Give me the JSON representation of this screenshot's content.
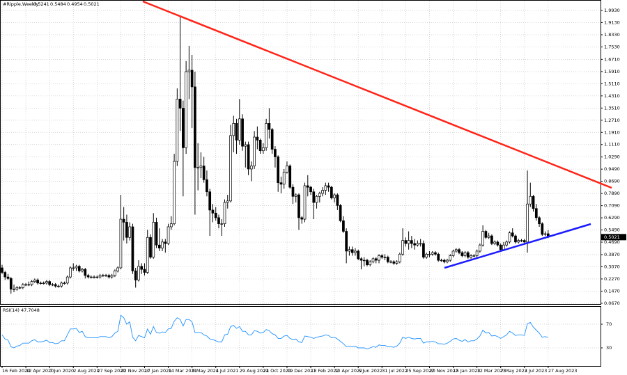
{
  "chart_data": [
    {
      "type": "candlestick",
      "title": "#Ripple,Weekly",
      "color": "#000000",
      "grid": true,
      "categories": [
        "16 Feb 2020",
        null,
        null,
        null,
        null,
        null,
        null,
        null,
        "12 Apr 2020",
        null,
        null,
        null,
        null,
        null,
        null,
        null,
        "7 Jun 2020",
        null,
        null,
        null,
        null,
        null,
        null,
        null,
        "2 Aug 2020",
        null,
        null,
        null,
        null,
        null,
        null,
        null,
        "27 Sep 2020",
        null,
        null,
        null,
        null,
        null,
        null,
        null,
        "22 Nov 2020",
        null,
        null,
        null,
        null,
        null,
        null,
        null,
        "17 Jan 2021",
        null,
        null,
        null,
        null,
        null,
        null,
        null,
        "14 Mar 2021",
        null,
        null,
        null,
        null,
        null,
        null,
        null,
        "9 May 2021",
        null,
        null,
        null,
        null,
        null,
        null,
        null,
        "4 Jul 2021",
        null,
        null,
        null,
        null,
        null,
        null,
        null,
        "29 Aug 2021",
        null,
        null,
        null,
        null,
        null,
        null,
        null,
        "24 Oct 2021",
        null,
        null,
        null,
        null,
        null,
        null,
        null,
        "19 Dec 2021",
        null,
        null,
        null,
        null,
        null,
        null,
        null,
        "13 Feb 2022",
        null,
        null,
        null,
        null,
        null,
        null,
        null,
        "10 Apr 2022",
        null,
        null,
        null,
        null,
        null,
        null,
        null,
        "5 Jun 2022",
        null,
        null,
        null,
        null,
        null,
        null,
        null,
        "31 Jul 2022",
        null,
        null,
        null,
        null,
        null,
        null,
        null,
        "25 Sep 2022",
        null,
        null,
        null,
        null,
        null,
        null,
        null,
        "20 Nov 2022",
        null,
        null,
        null,
        null,
        null,
        null,
        null,
        "15 Jan 2023",
        null,
        null,
        null,
        null,
        null,
        null,
        null,
        "12 Mar 2023",
        null,
        null,
        null,
        null,
        null,
        null,
        null,
        "7 May 2023",
        null,
        null,
        null,
        null,
        null,
        null,
        null,
        "2 Jul 2023",
        null,
        null,
        null,
        null,
        null,
        null,
        null,
        "27 Aug 2023"
      ],
      "open": [
        0.3,
        0.27,
        0.24,
        0.23,
        0.16,
        0.16,
        0.17,
        0.17,
        0.19,
        0.19,
        0.19,
        0.21,
        0.22,
        0.2,
        0.2,
        0.2,
        0.21,
        0.19,
        0.19,
        0.18,
        0.18,
        0.2,
        0.2,
        0.24,
        0.3,
        0.3,
        0.31,
        0.28,
        0.29,
        0.25,
        0.24,
        0.24,
        0.24,
        0.24,
        0.25,
        0.25,
        0.25,
        0.24,
        0.25,
        0.28,
        0.3,
        0.62,
        0.6,
        0.5,
        0.57,
        0.28,
        0.22,
        0.31,
        0.29,
        0.27,
        0.5,
        0.37,
        0.6,
        0.45,
        0.43,
        0.47,
        0.46,
        0.57,
        0.59,
        1.0,
        1.41,
        1.35,
        1.09,
        1.59,
        1.6,
        1.49,
        0.96,
        0.96,
        0.97,
        0.88,
        0.8,
        0.68,
        0.66,
        0.63,
        0.59,
        0.59,
        0.73,
        0.74,
        1.17,
        1.25,
        1.14,
        1.28,
        1.1,
        1.11,
        0.95,
        0.97,
        1.16,
        1.14,
        1.07,
        1.09,
        1.25,
        1.21,
        1.08,
        1.03,
        0.86,
        0.85,
        0.93,
        0.97,
        0.83,
        0.77,
        0.78,
        0.63,
        0.62,
        0.84,
        0.83,
        0.8,
        0.73,
        0.77,
        0.79,
        0.81,
        0.84,
        0.83,
        0.76,
        0.78,
        0.71,
        0.61,
        0.54,
        0.41,
        0.42,
        0.4,
        0.41,
        0.36,
        0.35,
        0.35,
        0.32,
        0.34,
        0.36,
        0.35,
        0.38,
        0.37,
        0.37,
        0.34,
        0.34,
        0.33,
        0.34,
        0.39,
        0.48,
        0.46,
        0.48,
        0.46,
        0.45,
        0.46,
        0.46,
        0.37,
        0.39,
        0.39,
        0.4,
        0.39,
        0.35,
        0.35,
        0.34,
        0.35,
        0.38,
        0.41,
        0.42,
        0.4,
        0.38,
        0.4,
        0.37,
        0.38,
        0.38,
        0.41,
        0.45,
        0.54,
        0.5,
        0.51,
        0.46,
        0.47,
        0.45,
        0.42,
        0.45,
        0.47,
        0.53,
        0.51,
        0.47,
        0.48,
        0.48,
        0.47,
        0.72,
        0.77,
        0.69,
        0.63,
        0.59,
        0.52,
        0.5241
      ],
      "high": [
        0.32,
        0.28,
        0.26,
        0.24,
        0.19,
        0.18,
        0.18,
        0.2,
        0.2,
        0.21,
        0.22,
        0.23,
        0.23,
        0.21,
        0.21,
        0.22,
        0.22,
        0.2,
        0.2,
        0.19,
        0.21,
        0.21,
        0.25,
        0.31,
        0.33,
        0.32,
        0.32,
        0.3,
        0.3,
        0.26,
        0.25,
        0.25,
        0.25,
        0.26,
        0.26,
        0.26,
        0.26,
        0.26,
        0.29,
        0.31,
        0.78,
        0.7,
        0.65,
        0.6,
        0.59,
        0.3,
        0.35,
        0.33,
        0.33,
        0.55,
        0.52,
        0.66,
        0.63,
        0.56,
        0.49,
        0.49,
        0.59,
        0.64,
        1.05,
        1.48,
        1.96,
        1.4,
        1.66,
        1.76,
        1.7,
        1.59,
        1.12,
        1.06,
        1.03,
        0.94,
        0.82,
        0.72,
        0.7,
        0.65,
        0.62,
        0.75,
        0.78,
        1.24,
        1.3,
        1.28,
        1.41,
        1.31,
        1.13,
        1.13,
        1.0,
        1.2,
        1.23,
        1.15,
        1.12,
        1.28,
        1.35,
        1.22,
        1.1,
        1.04,
        0.9,
        0.95,
        1.0,
        0.98,
        0.85,
        0.79,
        0.79,
        0.64,
        0.86,
        0.91,
        0.84,
        0.82,
        0.78,
        0.8,
        0.83,
        0.86,
        0.86,
        0.84,
        0.79,
        0.79,
        0.72,
        0.64,
        0.56,
        0.44,
        0.44,
        0.43,
        0.42,
        0.37,
        0.37,
        0.36,
        0.35,
        0.37,
        0.37,
        0.39,
        0.39,
        0.39,
        0.38,
        0.35,
        0.35,
        0.35,
        0.4,
        0.56,
        0.5,
        0.54,
        0.51,
        0.49,
        0.48,
        0.49,
        0.48,
        0.4,
        0.41,
        0.41,
        0.41,
        0.4,
        0.36,
        0.36,
        0.36,
        0.39,
        0.42,
        0.43,
        0.43,
        0.41,
        0.41,
        0.41,
        0.39,
        0.39,
        0.42,
        0.46,
        0.58,
        0.55,
        0.53,
        0.52,
        0.48,
        0.48,
        0.46,
        0.47,
        0.48,
        0.54,
        0.56,
        0.52,
        0.49,
        0.49,
        0.49,
        0.94,
        0.86,
        0.78,
        0.72,
        0.64,
        0.6,
        0.54,
        0.5484
      ],
      "low": [
        0.26,
        0.22,
        0.22,
        0.13,
        0.14,
        0.15,
        0.16,
        0.16,
        0.18,
        0.18,
        0.18,
        0.2,
        0.19,
        0.19,
        0.19,
        0.19,
        0.18,
        0.18,
        0.17,
        0.17,
        0.17,
        0.19,
        0.19,
        0.23,
        0.28,
        0.28,
        0.27,
        0.27,
        0.23,
        0.23,
        0.23,
        0.23,
        0.23,
        0.23,
        0.24,
        0.24,
        0.23,
        0.23,
        0.24,
        0.27,
        0.29,
        0.48,
        0.46,
        0.48,
        0.26,
        0.17,
        0.21,
        0.26,
        0.25,
        0.26,
        0.36,
        0.36,
        0.43,
        0.41,
        0.41,
        0.4,
        0.45,
        0.55,
        0.58,
        0.97,
        1.2,
        0.77,
        1.05,
        1.41,
        1.22,
        0.65,
        0.81,
        0.89,
        0.86,
        0.77,
        0.51,
        0.6,
        0.61,
        0.56,
        0.51,
        0.57,
        0.69,
        0.73,
        1.06,
        1.05,
        1.11,
        1.07,
        0.96,
        0.91,
        0.87,
        0.95,
        1.08,
        1.05,
        1.05,
        1.07,
        1.15,
        1.05,
        0.96,
        0.8,
        0.79,
        0.82,
        0.92,
        0.82,
        0.72,
        0.73,
        0.55,
        0.59,
        0.6,
        0.77,
        0.78,
        0.62,
        0.69,
        0.73,
        0.77,
        0.78,
        0.8,
        0.75,
        0.73,
        0.68,
        0.6,
        0.53,
        0.33,
        0.38,
        0.38,
        0.38,
        0.35,
        0.29,
        0.31,
        0.31,
        0.31,
        0.33,
        0.33,
        0.33,
        0.36,
        0.35,
        0.33,
        0.33,
        0.32,
        0.32,
        0.33,
        0.38,
        0.44,
        0.42,
        0.43,
        0.42,
        0.44,
        0.44,
        0.36,
        0.36,
        0.37,
        0.38,
        0.38,
        0.34,
        0.34,
        0.33,
        0.33,
        0.34,
        0.37,
        0.4,
        0.39,
        0.37,
        0.37,
        0.36,
        0.36,
        0.37,
        0.36,
        0.4,
        0.44,
        0.49,
        0.49,
        0.45,
        0.45,
        0.44,
        0.41,
        0.41,
        0.44,
        0.46,
        0.5,
        0.46,
        0.46,
        0.47,
        0.46,
        0.4,
        0.7,
        0.67,
        0.61,
        0.57,
        0.51,
        0.51,
        0.4954
      ],
      "close": [
        0.27,
        0.24,
        0.23,
        0.16,
        0.16,
        0.17,
        0.17,
        0.19,
        0.19,
        0.19,
        0.21,
        0.22,
        0.2,
        0.2,
        0.2,
        0.21,
        0.19,
        0.19,
        0.18,
        0.18,
        0.2,
        0.2,
        0.24,
        0.3,
        0.3,
        0.31,
        0.28,
        0.29,
        0.25,
        0.24,
        0.24,
        0.24,
        0.24,
        0.25,
        0.25,
        0.25,
        0.24,
        0.25,
        0.28,
        0.3,
        0.62,
        0.6,
        0.5,
        0.57,
        0.28,
        0.22,
        0.31,
        0.29,
        0.27,
        0.5,
        0.37,
        0.6,
        0.45,
        0.43,
        0.47,
        0.46,
        0.57,
        0.59,
        1.0,
        1.41,
        1.35,
        1.09,
        1.59,
        1.6,
        1.49,
        0.96,
        0.96,
        0.97,
        0.88,
        0.8,
        0.68,
        0.66,
        0.63,
        0.59,
        0.59,
        0.73,
        0.74,
        1.17,
        1.25,
        1.14,
        1.28,
        1.1,
        1.11,
        0.95,
        0.97,
        1.16,
        1.14,
        1.07,
        1.09,
        1.25,
        1.21,
        1.08,
        1.03,
        0.86,
        0.85,
        0.93,
        0.97,
        0.83,
        0.77,
        0.78,
        0.63,
        0.62,
        0.84,
        0.83,
        0.8,
        0.73,
        0.77,
        0.79,
        0.81,
        0.84,
        0.83,
        0.76,
        0.78,
        0.71,
        0.61,
        0.54,
        0.41,
        0.42,
        0.4,
        0.41,
        0.36,
        0.35,
        0.35,
        0.32,
        0.34,
        0.36,
        0.35,
        0.38,
        0.37,
        0.37,
        0.34,
        0.34,
        0.33,
        0.34,
        0.39,
        0.48,
        0.46,
        0.48,
        0.46,
        0.45,
        0.46,
        0.46,
        0.37,
        0.39,
        0.39,
        0.4,
        0.39,
        0.35,
        0.35,
        0.34,
        0.35,
        0.38,
        0.41,
        0.42,
        0.4,
        0.38,
        0.4,
        0.37,
        0.38,
        0.38,
        0.41,
        0.45,
        0.54,
        0.5,
        0.51,
        0.46,
        0.47,
        0.45,
        0.42,
        0.45,
        0.47,
        0.53,
        0.51,
        0.47,
        0.48,
        0.48,
        0.47,
        0.72,
        0.77,
        0.69,
        0.63,
        0.59,
        0.52,
        0.524,
        0.5021
      ],
      "ylim": [
        0.062,
        2.057
      ],
      "yticks": [
        {
          "value": 1.993,
          "label": "1.9930"
        },
        {
          "value": 1.913,
          "label": "1.9130"
        },
        {
          "value": 1.833,
          "label": "1.8330"
        },
        {
          "value": 1.753,
          "label": "1.7530"
        },
        {
          "value": 1.671,
          "label": "1.6710"
        },
        {
          "value": 1.591,
          "label": "1.5910"
        },
        {
          "value": 1.511,
          "label": "1.5110"
        },
        {
          "value": 1.431,
          "label": "1.4310"
        },
        {
          "value": 1.351,
          "label": "1.3510"
        },
        {
          "value": 1.271,
          "label": "1.2710"
        },
        {
          "value": 1.191,
          "label": "1.1910"
        },
        {
          "value": 1.111,
          "label": "1.1110"
        },
        {
          "value": 1.029,
          "label": "1.0290"
        },
        {
          "value": 0.949,
          "label": "0.9490"
        },
        {
          "value": 0.869,
          "label": "0.8690"
        },
        {
          "value": 0.789,
          "label": "0.7890"
        },
        {
          "value": 0.709,
          "label": "0.7090"
        },
        {
          "value": 0.629,
          "label": "0.6290"
        },
        {
          "value": 0.549,
          "label": "0.5490"
        },
        {
          "value": 0.469,
          "label": "0.4690"
        },
        {
          "value": 0.387,
          "label": "0.3870"
        },
        {
          "value": 0.307,
          "label": "0.3070"
        },
        {
          "value": 0.227,
          "label": "0.2270"
        },
        {
          "value": 0.147,
          "label": "0.1470"
        },
        {
          "value": 0.067,
          "label": "0.0670"
        }
      ]
    },
    {
      "type": "line",
      "title": "RSI(14)",
      "color": "#1e90ff",
      "values": [
        52,
        45,
        43,
        32,
        30,
        33,
        34,
        38,
        38,
        38,
        42,
        44,
        40,
        40,
        41,
        43,
        39,
        39,
        37,
        38,
        42,
        42,
        52,
        62,
        62,
        63,
        56,
        58,
        49,
        47,
        47,
        47,
        47,
        49,
        49,
        49,
        47,
        49,
        55,
        58,
        85,
        81,
        70,
        74,
        48,
        42,
        51,
        49,
        47,
        62,
        53,
        66,
        56,
        55,
        57,
        56,
        62,
        63,
        75,
        81,
        78,
        67,
        78,
        78,
        74,
        56,
        56,
        56,
        52,
        50,
        45,
        44,
        42,
        40,
        40,
        52,
        53,
        66,
        68,
        63,
        66,
        58,
        58,
        52,
        52,
        59,
        58,
        55,
        56,
        61,
        59,
        54,
        52,
        46,
        46,
        50,
        51,
        46,
        44,
        45,
        40,
        39,
        50,
        49,
        48,
        46,
        48,
        49,
        50,
        52,
        51,
        47,
        48,
        45,
        41,
        37,
        32,
        33,
        32,
        33,
        30,
        30,
        30,
        28,
        30,
        32,
        31,
        35,
        34,
        34,
        32,
        32,
        31,
        33,
        38,
        48,
        46,
        48,
        46,
        45,
        46,
        46,
        38,
        40,
        40,
        41,
        40,
        37,
        37,
        36,
        38,
        41,
        45,
        46,
        43,
        41,
        44,
        40,
        42,
        42,
        45,
        50,
        60,
        55,
        56,
        50,
        51,
        49,
        46,
        49,
        52,
        58,
        55,
        51,
        52,
        52,
        51,
        71,
        73,
        65,
        60,
        55,
        48,
        49,
        47.7048
      ],
      "ylim": [
        0,
        100
      ],
      "yticks": [
        70,
        30
      ]
    }
  ]
}
